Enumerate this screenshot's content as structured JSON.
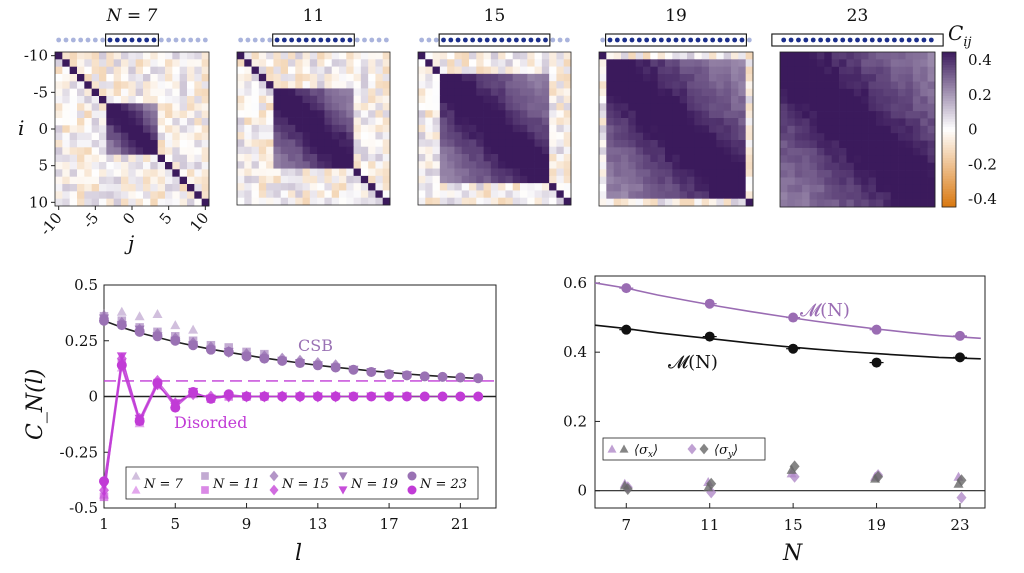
{
  "heatmaps": {
    "titles": [
      "N = 7",
      "11",
      "15",
      "19",
      "23"
    ],
    "N": [
      7,
      11,
      15,
      19,
      23
    ],
    "sites_total": 21,
    "ylabel": "i",
    "xlabel": "j",
    "y_ticks": [
      "-10",
      "-5",
      "0",
      "5",
      "10"
    ],
    "x_ticks": [
      "-10",
      "-5",
      "0",
      "5",
      "10"
    ],
    "colorbar": {
      "label": "C",
      "label_sub": "ij",
      "ticks": [
        "0.4",
        "0.2",
        "0",
        "-0.2",
        "-0.4"
      ],
      "range": [
        -0.4,
        0.4
      ],
      "colors": {
        "neg": "#d9780f",
        "zero": "#ffffff",
        "pos": "#3b1a5c"
      }
    },
    "colors": {
      "active_dot": "#1c2f8c",
      "inactive_dot": "#aab4dd"
    }
  },
  "chart_data": [
    {
      "type": "scatter",
      "name": "C_N(l) correlation decay",
      "xlabel": "l",
      "ylabel": "C_N(l)",
      "xlim": [
        1,
        23
      ],
      "ylim": [
        -0.5,
        0.5
      ],
      "x_ticks": [
        "1",
        "5",
        "9",
        "13",
        "17",
        "21"
      ],
      "y_ticks": [
        "0.5",
        "0.25",
        "0",
        "-0.25",
        "-0.5"
      ],
      "annotations": {
        "csb": "CSB",
        "disordered": "Disorded"
      },
      "legend": [
        "N = 7",
        "N = 11",
        "N = 15",
        "N = 19",
        "N = 23"
      ],
      "legend_text": [
        "N = 7",
        "N = 11",
        "N = 15",
        "N = 19",
        "N = 23"
      ],
      "legend_placement": "bottom",
      "x": [
        1,
        2,
        3,
        4,
        5,
        6,
        7,
        8,
        9,
        10,
        11,
        12,
        13,
        14,
        15,
        16,
        17,
        18,
        19,
        20,
        21,
        22
      ],
      "csb_fit": [
        0.34,
        0.31,
        0.285,
        0.265,
        0.245,
        0.228,
        0.212,
        0.198,
        0.185,
        0.172,
        0.161,
        0.15,
        0.14,
        0.131,
        0.123,
        0.115,
        0.108,
        0.101,
        0.095,
        0.09,
        0.085,
        0.081
      ],
      "csb_level": 0.07,
      "series_csb": [
        {
          "n": 7,
          "values": [
            0.37,
            0.38,
            0.36,
            0.37,
            0.32,
            0.3
          ]
        },
        {
          "n": 11,
          "values": [
            0.36,
            0.34,
            0.31,
            0.29,
            0.27,
            0.25,
            0.23,
            0.22,
            0.2,
            0.19
          ]
        },
        {
          "n": 15,
          "values": [
            0.35,
            0.33,
            0.3,
            0.28,
            0.26,
            0.24,
            0.22,
            0.2,
            0.19,
            0.18,
            0.17,
            0.16,
            0.15,
            0.14
          ]
        },
        {
          "n": 19,
          "values": [
            0.35,
            0.32,
            0.3,
            0.27,
            0.25,
            0.23,
            0.21,
            0.2,
            0.18,
            0.17,
            0.16,
            0.15,
            0.14,
            0.13,
            0.12,
            0.11,
            0.1,
            0.095
          ]
        },
        {
          "n": 23,
          "values": [
            0.34,
            0.32,
            0.29,
            0.27,
            0.25,
            0.23,
            0.21,
            0.2,
            0.18,
            0.17,
            0.16,
            0.15,
            0.14,
            0.13,
            0.12,
            0.11,
            0.1,
            0.095,
            0.09,
            0.088,
            0.085,
            0.082
          ]
        }
      ],
      "series_disordered": [
        {
          "n": 7,
          "values": [
            -0.44,
            0.13,
            -0.12,
            0.05,
            -0.03,
            0.01
          ]
        },
        {
          "n": 11,
          "values": [
            -0.45,
            0.15,
            -0.11,
            0.06,
            -0.04,
            0.02,
            -0.01,
            0.0,
            0.0,
            0.0
          ]
        },
        {
          "n": 15,
          "values": [
            -0.42,
            0.17,
            -0.1,
            0.07,
            -0.03,
            0.01,
            0.0,
            0.0,
            0.0,
            0.0,
            0.0,
            0.0,
            0.0,
            0.0
          ]
        },
        {
          "n": 19,
          "values": [
            -0.4,
            0.18,
            -0.1,
            0.05,
            -0.03,
            0.02,
            -0.01,
            0.0,
            0.0,
            0.0,
            0.0,
            0.0,
            0.0,
            0.0,
            0.0,
            0.0,
            0.0,
            0.0
          ]
        },
        {
          "n": 23,
          "values": [
            -0.38,
            0.14,
            -0.11,
            0.06,
            -0.05,
            0.02,
            -0.01,
            0.01,
            0.0,
            0.0,
            0.0,
            0.0,
            0.0,
            0.0,
            0.0,
            0.0,
            0.0,
            0.0,
            0.0,
            0.0,
            0.0,
            0.0
          ]
        }
      ],
      "colors": {
        "csb": "#9a72b4",
        "disordered": "#c13bd6",
        "fit": "#222222"
      }
    },
    {
      "type": "scatter",
      "name": "M(N) magnetization",
      "xlabel": "N",
      "ylabel": "",
      "xlim": [
        5.5,
        24.2
      ],
      "ylim": [
        -0.05,
        0.62
      ],
      "x_ticks": [
        "7",
        "11",
        "15",
        "19",
        "23"
      ],
      "y_ticks": [
        "0.6",
        "0.4",
        "0.2",
        "0"
      ],
      "x": [
        7,
        11,
        15,
        19,
        23
      ],
      "series": [
        {
          "name": "M(N) upper",
          "label": "𝓜(N)",
          "values": [
            0.585,
            0.54,
            0.5,
            0.465,
            0.447
          ],
          "color": "#9a6cb3"
        },
        {
          "name": "M(N) lower",
          "label": "𝓜(N)",
          "values": [
            0.465,
            0.445,
            0.41,
            0.37,
            0.385
          ],
          "color": "#111111"
        }
      ],
      "fit_upper": [
        0.6,
        0.585,
        0.565,
        0.548,
        0.532,
        0.517,
        0.503,
        0.49,
        0.478,
        0.467,
        0.457,
        0.448,
        0.44
      ],
      "fit_lower": [
        0.478,
        0.468,
        0.456,
        0.446,
        0.436,
        0.426,
        0.417,
        0.409,
        0.402,
        0.396,
        0.39,
        0.385,
        0.381
      ],
      "fit_x": [
        5.5,
        7,
        8.5,
        10,
        11.5,
        13,
        14.5,
        16,
        17.5,
        19,
        20.5,
        22,
        24
      ],
      "sigma_points": [
        {
          "x": 7,
          "values": [
            0.02,
            0.01,
            0.015,
            0.005
          ]
        },
        {
          "x": 11,
          "values": [
            0.025,
            -0.005,
            0.01,
            0.02
          ]
        },
        {
          "x": 15,
          "values": [
            0.05,
            0.04,
            0.06,
            0.07
          ]
        },
        {
          "x": 19,
          "values": [
            0.04,
            0.045,
            0.035,
            0.04
          ]
        },
        {
          "x": 23,
          "values": [
            0.04,
            -0.02,
            0.02,
            0.03
          ]
        }
      ],
      "legend": [
        "⟨σx⟩",
        "⟨σy⟩"
      ],
      "legend_text": [
        "⟨σ",
        "x",
        "⟩",
        "⟨σ",
        "y",
        "⟩"
      ],
      "legend_placement": "bottom-left",
      "colors": {
        "sigma_x": "#b08ac8",
        "sigma_y": "#666666"
      }
    }
  ]
}
